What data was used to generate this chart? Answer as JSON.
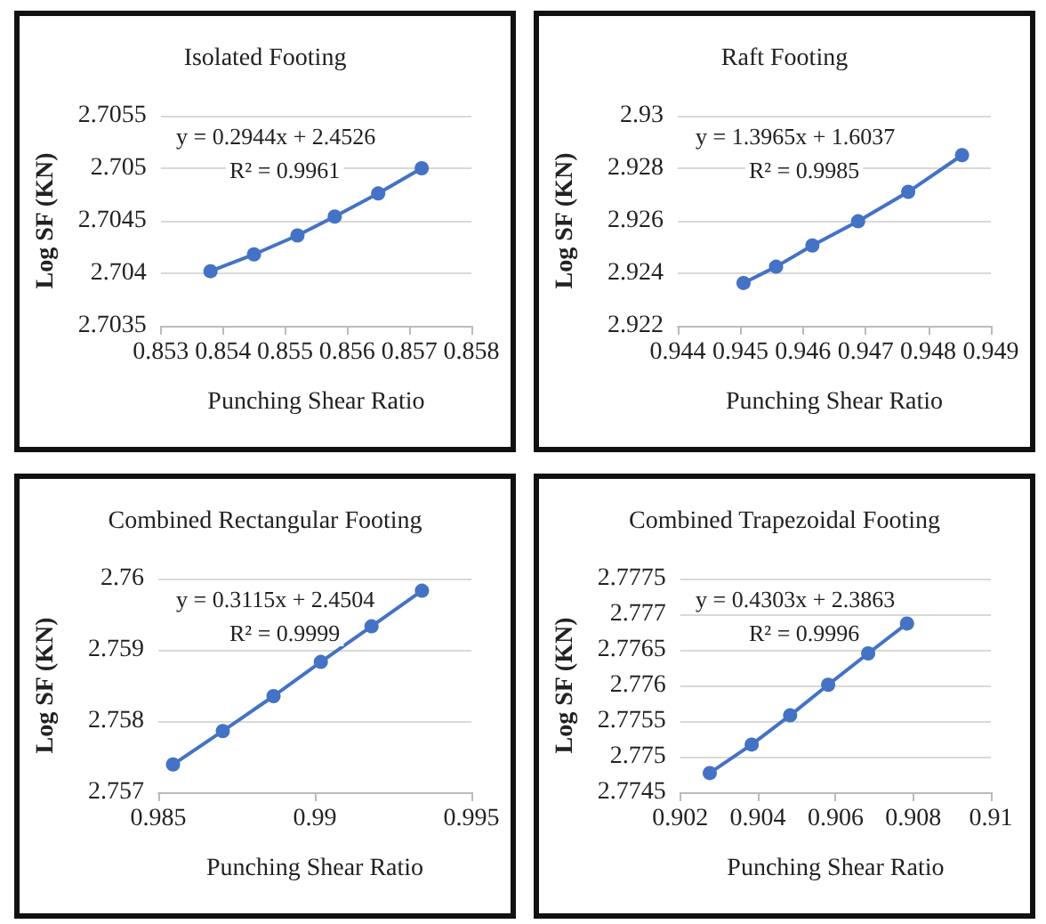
{
  "chart_data": [
    {
      "type": "line",
      "title": "Isolated Footing",
      "xlabel": "Punching Shear Ratio",
      "ylabel": "Log SF (KN)",
      "annotations": [
        "y = 0.2944x + 2.4526",
        "R² = 0.9961"
      ],
      "x": [
        0.8538,
        0.8545,
        0.8552,
        0.8558,
        0.8565,
        0.8572
      ],
      "series": [
        {
          "color": "#4472c4",
          "values": [
            2.70402,
            2.70418,
            2.70436,
            2.70454,
            2.70476,
            2.705
          ]
        }
      ],
      "xlim": [
        0.853,
        0.858
      ],
      "xticks": [
        0.853,
        0.854,
        0.855,
        0.856,
        0.857,
        0.858
      ],
      "ylim": [
        2.7035,
        2.7055
      ],
      "yticks": [
        2.7035,
        2.704,
        2.7045,
        2.705,
        2.7055
      ],
      "grid": "y",
      "marker": "circle",
      "line_style": "solid"
    },
    {
      "type": "line",
      "title": "Raft Footing",
      "xlabel": "Punching Shear Ratio",
      "ylabel": "Log SF (KN)",
      "annotations": [
        "y = 1.3965x + 1.6037",
        "R² = 0.9985"
      ],
      "x": [
        0.94505,
        0.94557,
        0.94615,
        0.94688,
        0.94768,
        0.94854
      ],
      "series": [
        {
          "color": "#4472c4",
          "values": [
            2.92363,
            2.92425,
            2.92506,
            2.92598,
            2.9271,
            2.9285
          ]
        }
      ],
      "xlim": [
        0.944,
        0.949
      ],
      "xticks": [
        0.944,
        0.945,
        0.946,
        0.947,
        0.948,
        0.949
      ],
      "ylim": [
        2.922,
        2.93
      ],
      "yticks": [
        2.922,
        2.924,
        2.926,
        2.928,
        2.93
      ],
      "grid": "y",
      "marker": "circle",
      "line_style": "solid"
    },
    {
      "type": "line",
      "title": "Combined Rectangular Footing",
      "xlabel": "Punching Shear Ratio",
      "ylabel": "Log SF (KN)",
      "annotations": [
        "y = 0.3115x + 2.4504",
        "R² = 0.9999"
      ],
      "x": [
        0.98547,
        0.98706,
        0.98868,
        0.99019,
        0.99181,
        0.99342
      ],
      "series": [
        {
          "color": "#4472c4",
          "values": [
            2.75739,
            2.75786,
            2.75835,
            2.75883,
            2.75933,
            2.75983
          ]
        }
      ],
      "xlim": [
        0.985,
        0.995
      ],
      "xticks": [
        0.985,
        0.99,
        0.995
      ],
      "ylim": [
        2.757,
        2.76
      ],
      "yticks": [
        2.757,
        2.758,
        2.759,
        2.76
      ],
      "grid": "y",
      "marker": "circle",
      "line_style": "solid"
    },
    {
      "type": "line",
      "title": "Combined Trapezoidal Footing",
      "xlabel": "Punching Shear Ratio",
      "ylabel": "Log SF (KN)",
      "annotations": [
        "y = 0.4303x + 2.3863",
        "R² = 0.9996"
      ],
      "x": [
        0.90276,
        0.90384,
        0.90483,
        0.90581,
        0.90684,
        0.90784
      ],
      "series": [
        {
          "color": "#4472c4",
          "values": [
            2.77477,
            2.77517,
            2.77558,
            2.77601,
            2.77645,
            2.77687
          ]
        }
      ],
      "xlim": [
        0.902,
        0.91
      ],
      "xticks": [
        0.902,
        0.904,
        0.906,
        0.908,
        0.91
      ],
      "ylim": [
        2.7745,
        2.7775
      ],
      "yticks": [
        2.7745,
        2.775,
        2.7755,
        2.776,
        2.7765,
        2.777,
        2.7775
      ],
      "grid": "y",
      "marker": "circle",
      "line_style": "solid"
    }
  ]
}
